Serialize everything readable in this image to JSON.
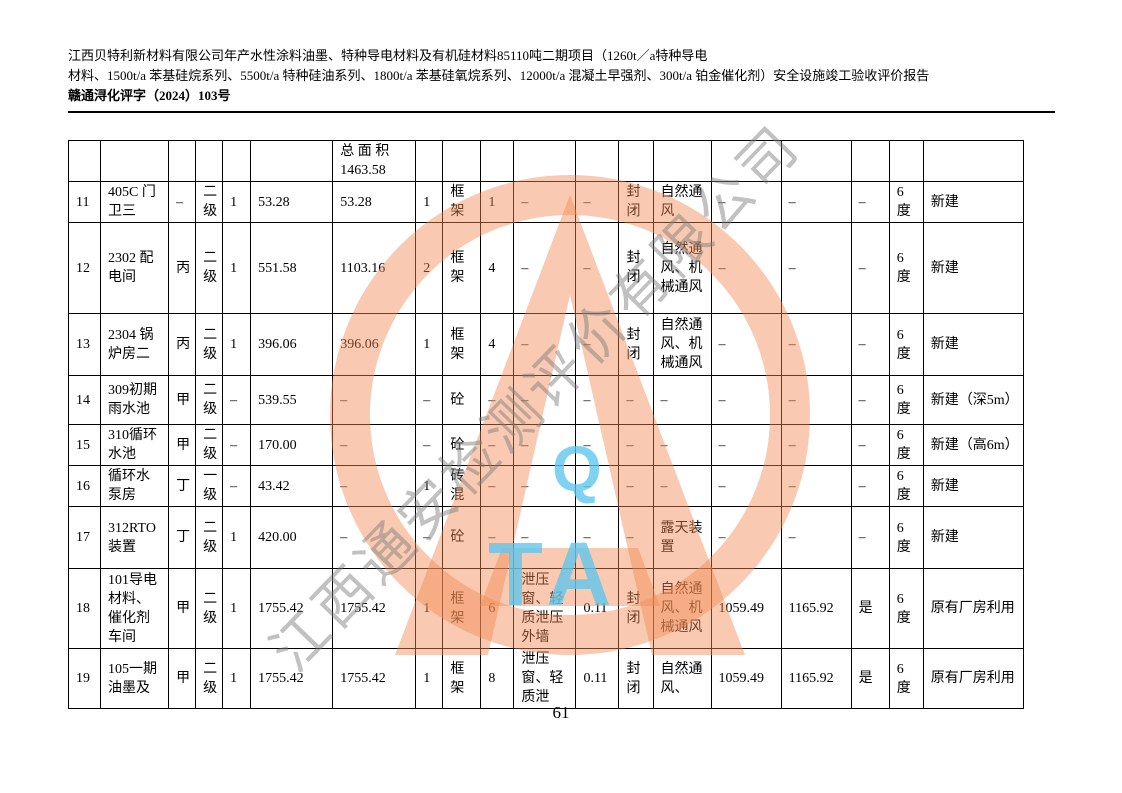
{
  "header": {
    "line1": "江西贝特利新材料有限公司年产水性涂料油墨、特种导电材料及有机硅材料85110吨二期项目（1260t／a特种导电",
    "line2": "材料、1500t/a 苯基硅烷系列、5500t/a 特种硅油系列、1800t/a 苯基硅氧烷系列、12000t/a 混凝土早强剂、300t/a 铂金催化剂）安全设施竣工验收评价报告",
    "line3": "赣通浔化评字（2024）103号"
  },
  "watermark": {
    "diagonal_text": "江西通安检测评价有限公司",
    "logo_letter": "A",
    "q": "Q",
    "ta": "TA",
    "orange": "#f28a52",
    "blue": "#5cc5ee",
    "gray": "#7d7d7d"
  },
  "table": {
    "rows": [
      [
        "",
        "",
        "",
        "",
        "",
        "",
        "总 面 积 1463.58",
        "",
        "",
        "",
        "",
        "",
        "",
        "",
        "",
        "",
        "",
        "",
        ""
      ],
      [
        "11",
        "405C 门卫三",
        "–",
        "二级",
        "1",
        "53.28",
        "53.28",
        "1",
        "框架",
        "1",
        "–",
        "–",
        "封闭",
        "自然通风",
        "–",
        "–",
        "–",
        "6度",
        "新建"
      ],
      [
        "12",
        "2302 配电间",
        "丙",
        "二级",
        "1",
        "551.58",
        "1103.16",
        "2",
        "框架",
        "4",
        "–",
        "–",
        "封闭",
        "自然通风、机械通风",
        "–",
        "–",
        "–",
        "6度",
        "新建"
      ],
      [
        "13",
        "2304 锅炉房二",
        "丙",
        "二级",
        "1",
        "396.06",
        "396.06",
        "1",
        "框架",
        "4",
        "–",
        "–",
        "封闭",
        "自然通风、机械通风",
        "–",
        "–",
        "–",
        "6度",
        "新建"
      ],
      [
        "14",
        "309初期雨水池",
        "甲",
        "二级",
        "–",
        "539.55",
        "–",
        "–",
        "砼",
        "–",
        "–",
        "–",
        "–",
        "–",
        "–",
        "–",
        "–",
        "6度",
        "新建（深5m）"
      ],
      [
        "15",
        "310循环水池",
        "甲",
        "二级",
        "–",
        "170.00",
        "–",
        "–",
        "砼",
        "–",
        "–",
        "–",
        "–",
        "–",
        "–",
        "–",
        "–",
        "6度",
        "新建（高6m）"
      ],
      [
        "16",
        "循环水泵房",
        "丁",
        "一级",
        "–",
        "43.42",
        "–",
        "1",
        "砖混",
        "–",
        "–",
        "–",
        "–",
        "–",
        "–",
        "–",
        "–",
        "6度",
        "新建"
      ],
      [
        "17",
        "312RTO装置",
        "丁",
        "二级",
        "1",
        "420.00",
        "–",
        "–",
        "砼",
        "–",
        "–",
        "–",
        "–",
        "露天装置",
        "–",
        "–",
        "–",
        "6度",
        "新建"
      ],
      [
        "18",
        "101导电材料、催化剂车间",
        "甲",
        "二级",
        "1",
        "1755.42",
        "1755.42",
        "1",
        "框架",
        "6",
        "泄压窗、轻质泄压外墙",
        "0.11",
        "封闭",
        "自然通风、机械通风",
        "1059.49",
        "1165.92",
        "是",
        "6度",
        "原有厂房利用"
      ],
      [
        "19",
        "105一期油墨及",
        "甲",
        "二级",
        "1",
        "1755.42",
        "1755.42",
        "1",
        "框架",
        "8",
        "泄压窗、轻质泄",
        "0.11",
        "封闭",
        "自然通风、",
        "1059.49",
        "1165.92",
        "是",
        "6度",
        "原有厂房利用"
      ]
    ]
  },
  "footer": {
    "page_number": "61"
  }
}
